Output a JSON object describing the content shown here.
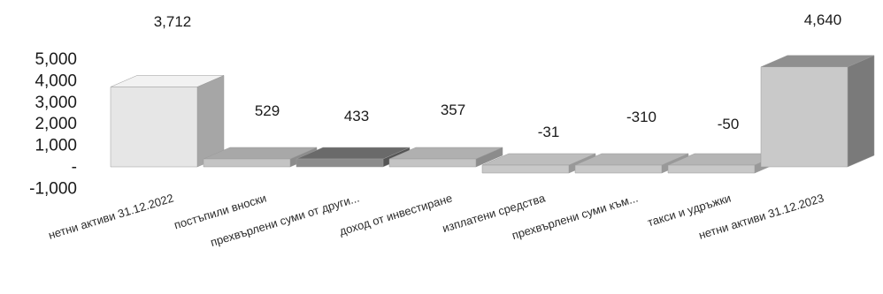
{
  "chart_data": {
    "type": "bar",
    "style": "3d-waterfall",
    "categories": [
      "нетни активи 31.12.2022",
      "постъпили вноски",
      "прехвърлени суми от други...",
      "доход от инвестиране",
      "изплатени средства",
      "прехвърлени суми към...",
      "такси и удръжки",
      "нетни активи 31.12.2023"
    ],
    "values": [
      3712,
      529,
      433,
      357,
      -31,
      -310,
      -50,
      4640
    ],
    "data_labels": [
      "3,712",
      "529",
      "433",
      "357",
      "-31",
      "-310",
      "-50",
      "4,640"
    ],
    "y_ticks": [
      "5,000",
      "4,000",
      "3,000",
      "2,000",
      "1,000",
      "-",
      "-1,000"
    ],
    "y_tick_values": [
      5000,
      4000,
      3000,
      2000,
      1000,
      0,
      -1000
    ],
    "ylim": [
      -1000,
      5000
    ],
    "title": "",
    "xlabel": "",
    "ylabel": "",
    "grid": false,
    "legend": "none"
  },
  "colors": {
    "background": "#ffffff",
    "text": "#1a1a1a",
    "bars": [
      {
        "front": "#e6e6e6",
        "top": "#f2f2f2",
        "side": "#a6a6a6"
      },
      {
        "front": "#c4c4c4",
        "top": "#a8a8a8",
        "side": "#8c8c8c"
      },
      {
        "front": "#8c8c8c",
        "top": "#6a6a6a",
        "side": "#555555"
      },
      {
        "front": "#c4c4c4",
        "top": "#b0b0b0",
        "side": "#8c8c8c"
      },
      {
        "front": "#c8c8c8",
        "top": "#bdbdbd",
        "side": "#999999"
      },
      {
        "front": "#c8c8c8",
        "top": "#b5b5b5",
        "side": "#999999"
      },
      {
        "front": "#c8c8c8",
        "top": "#b5b5b5",
        "side": "#999999"
      },
      {
        "front": "#c9c9c9",
        "top": "#8f8f8f",
        "side": "#7a7a7a"
      }
    ]
  }
}
